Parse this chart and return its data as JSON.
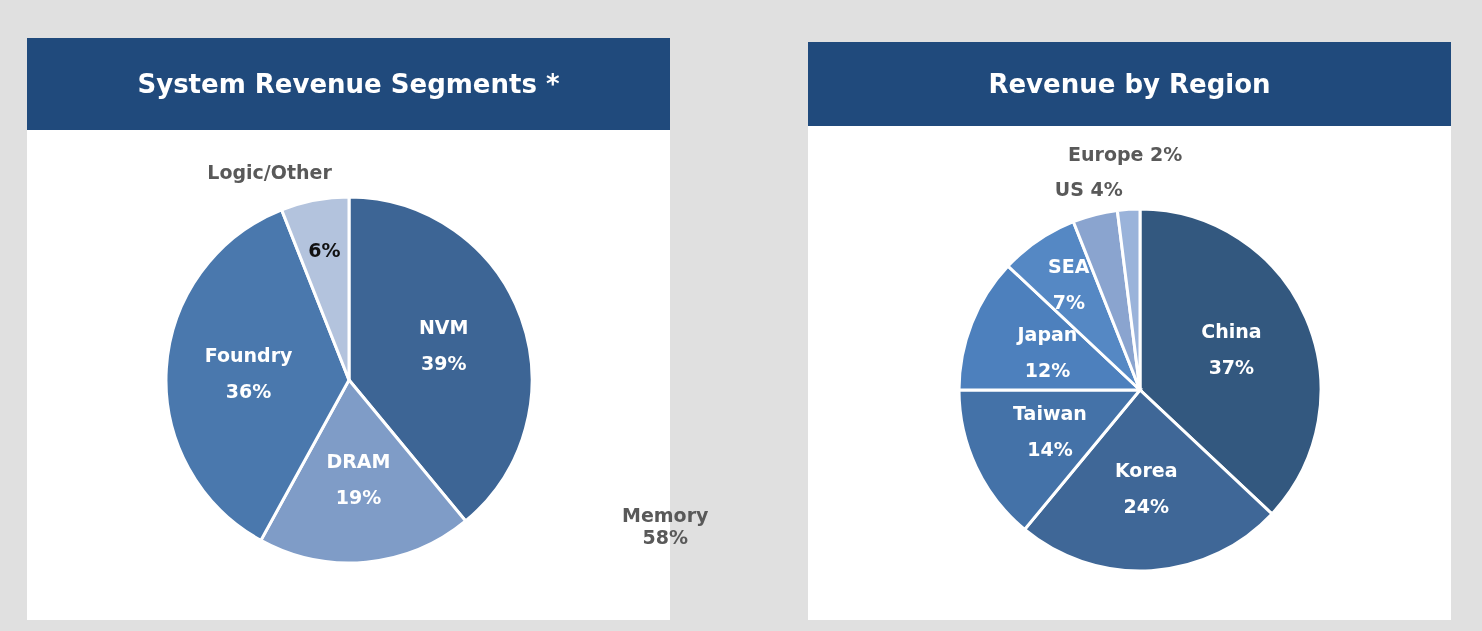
{
  "chart_data": [
    {
      "type": "pie",
      "title": "System Revenue Segments *",
      "categories": [
        "NVM",
        "DRAM",
        "Foundry",
        "Logic/Other"
      ],
      "values": [
        39,
        19,
        36,
        6
      ],
      "colors": [
        "#3d6595",
        "#7f9cc7",
        "#4a78ad",
        "#b3c3dd"
      ],
      "value_labels": [
        "39%",
        "19%",
        "36%",
        "6%"
      ],
      "annotations": [
        "Memory\n58%"
      ]
    },
    {
      "type": "pie",
      "title": "Revenue by Region",
      "categories": [
        "China",
        "Korea",
        "Taiwan",
        "Japan",
        "SEA",
        "US",
        "Europe"
      ],
      "values": [
        37,
        24,
        14,
        12,
        7,
        4,
        2
      ],
      "colors": [
        "#33587f",
        "#3f6797",
        "#4472a8",
        "#4d80bd",
        "#5588c4",
        "#8aa4cf",
        "#9ab3da"
      ],
      "value_labels": [
        "37%",
        "24%",
        "14%",
        "12%",
        "7%",
        "4%",
        "2%"
      ]
    }
  ]
}
